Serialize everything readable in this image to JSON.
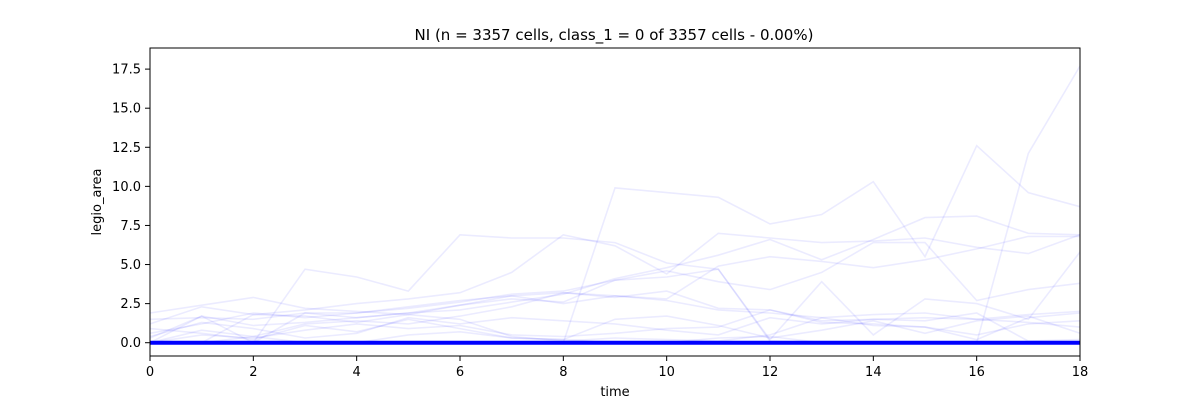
{
  "chart_data": {
    "type": "line",
    "title": "NI (n = 3357 cells, class_1 = 0 of 3357 cells - 0.00%)",
    "xlabel": "time",
    "ylabel": "legio_area",
    "xlim": [
      0,
      18
    ],
    "ylim": [
      -0.85,
      18.85
    ],
    "xticks": [
      0,
      2,
      4,
      6,
      8,
      10,
      12,
      14,
      16,
      18
    ],
    "yticks": [
      0.0,
      2.5,
      5.0,
      7.5,
      10.0,
      12.5,
      15.0,
      17.5
    ],
    "xtick_labels": [
      "0",
      "2",
      "4",
      "6",
      "8",
      "10",
      "12",
      "14",
      "16",
      "18"
    ],
    "ytick_labels": [
      "0.0",
      "2.5",
      "5.0",
      "7.5",
      "10.0",
      "12.5",
      "15.0",
      "17.5"
    ],
    "grid": false,
    "legend": "none",
    "x": [
      0,
      1,
      2,
      3,
      4,
      5,
      6,
      7,
      8,
      9,
      10,
      11,
      12,
      13,
      14,
      15,
      16,
      17,
      18
    ],
    "individual_series_color": "#0000ff",
    "individual_series_opacity": 0.08,
    "mean_series_color": "#0000ff",
    "series": [
      {
        "values": [
          0,
          0,
          0,
          4.7,
          4.2,
          3.3,
          6.9,
          6.7,
          6.7,
          6.4,
          5.1,
          4.7,
          0.1,
          0,
          0,
          0,
          0,
          12.1,
          17.7
        ]
      },
      {
        "values": [
          0,
          0,
          0,
          0,
          0,
          0,
          0,
          0,
          0,
          9.9,
          9.6,
          9.3,
          7.6,
          8.2,
          10.3,
          5.5,
          12.6,
          9.6,
          8.7
        ]
      },
      {
        "values": [
          1.2,
          2.3,
          1.8,
          2.1,
          2.5,
          2.8,
          3.2,
          4.5,
          6.9,
          6.2,
          4.4,
          7.0,
          6.7,
          6.4,
          6.5,
          6.7,
          6.1,
          5.7,
          6.9
        ]
      },
      {
        "values": [
          0.3,
          1.7,
          1.1,
          1.3,
          1.6,
          1.9,
          2.1,
          2.6,
          3.1,
          4.1,
          4.8,
          5.6,
          6.6,
          5.3,
          6.6,
          8.0,
          8.1,
          7.0,
          6.9
        ]
      },
      {
        "values": [
          1.9,
          2.4,
          2.9,
          2.2,
          2.0,
          1.8,
          2.4,
          3.0,
          2.5,
          3.0,
          2.8,
          4.9,
          5.5,
          5.2,
          4.8,
          5.3,
          6.0,
          6.8,
          6.8
        ]
      },
      {
        "values": [
          0.6,
          1.2,
          1.9,
          1.6,
          1.9,
          2.2,
          2.6,
          3.1,
          3.3,
          4.0,
          4.6,
          3.9,
          3.4,
          4.5,
          6.4,
          6.4,
          2.7,
          3.4,
          3.8
        ]
      },
      {
        "values": [
          0,
          0.8,
          0.4,
          1.2,
          1.4,
          1.2,
          1.7,
          2.3,
          3.2,
          2.9,
          3.3,
          2.2,
          2.1,
          1.4,
          1.5,
          1.6,
          1.5,
          1.3,
          1.0
        ]
      },
      {
        "values": [
          0,
          1.7,
          0,
          1.9,
          1.6,
          1.9,
          2.4,
          2.8,
          2.6,
          4.0,
          4.2,
          4.7,
          0.2,
          3.9,
          0.5,
          2.8,
          2.5,
          1.5,
          5.8
        ]
      },
      {
        "values": [
          0,
          0,
          0.4,
          0,
          0,
          0.5,
          0.7,
          0.3,
          0.2,
          0,
          0,
          0.3,
          0.4,
          0,
          0,
          0,
          0,
          0,
          0
        ]
      },
      {
        "values": [
          0.4,
          1.3,
          0.9,
          0.3,
          0.6,
          1.6,
          1.2,
          1.6,
          1.4,
          1.2,
          0.8,
          0.5,
          1.6,
          1.2,
          1.5,
          1.4,
          1.9,
          0.1,
          0.2
        ]
      },
      {
        "values": [
          1.5,
          1.6,
          1.5,
          1.9,
          1.9,
          2.3,
          2.7,
          3.0,
          3.2,
          3.0,
          2.7,
          2.1,
          1.9,
          1.6,
          1.8,
          1.9,
          1.5,
          1.8,
          2.0
        ]
      },
      {
        "values": [
          0,
          0.5,
          0.3,
          0.8,
          1.2,
          0.9,
          1.1,
          0.5,
          0.4,
          0.6,
          0.9,
          1.0,
          2.1,
          1.3,
          1.2,
          1.0,
          0.5,
          1.2,
          1.4
        ]
      },
      {
        "values": [
          0.9,
          0.6,
          0.2,
          1.1,
          0.7,
          1.5,
          0.9,
          0.3,
          0.2,
          1.5,
          1.7,
          1.1,
          0.3,
          0.8,
          1.4,
          0.6,
          1.4,
          1.7,
          0.6
        ]
      },
      {
        "values": [
          0,
          0,
          1.8,
          1.7,
          1.3,
          1.8,
          1.5,
          0.4,
          0.1,
          0.3,
          0.2,
          0.1,
          0.5,
          1.6,
          1.1,
          1.0,
          0.2,
          1.6,
          1.9
        ]
      }
    ],
    "mean": {
      "values": [
        0,
        0,
        0,
        0,
        0,
        0,
        0,
        0,
        0,
        0,
        0,
        0,
        0,
        0,
        0,
        0,
        0,
        0,
        0
      ]
    }
  }
}
